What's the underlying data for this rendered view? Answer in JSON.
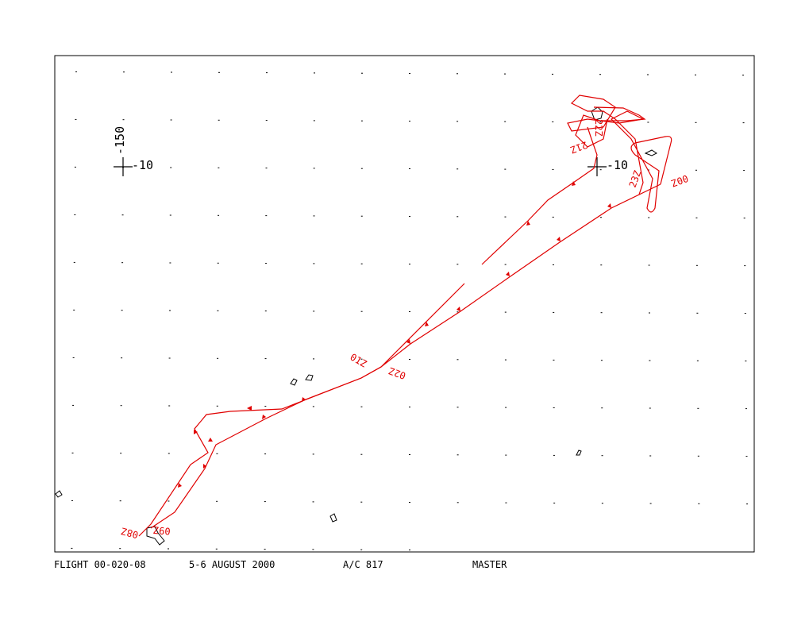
{
  "markers": [
    {
      "label": "-150"
    },
    {
      "label": "-10"
    },
    {
      "label": "-10"
    }
  ],
  "time_labels": [
    "00Z",
    "23Z",
    "22Z",
    "21Z",
    "01Z",
    "02Z",
    "08Z",
    "09Z"
  ],
  "footer": [
    "FLIGHT 00-020-08",
    "5-6 AUGUST 2000",
    "A/C 817",
    "MASTER"
  ]
}
